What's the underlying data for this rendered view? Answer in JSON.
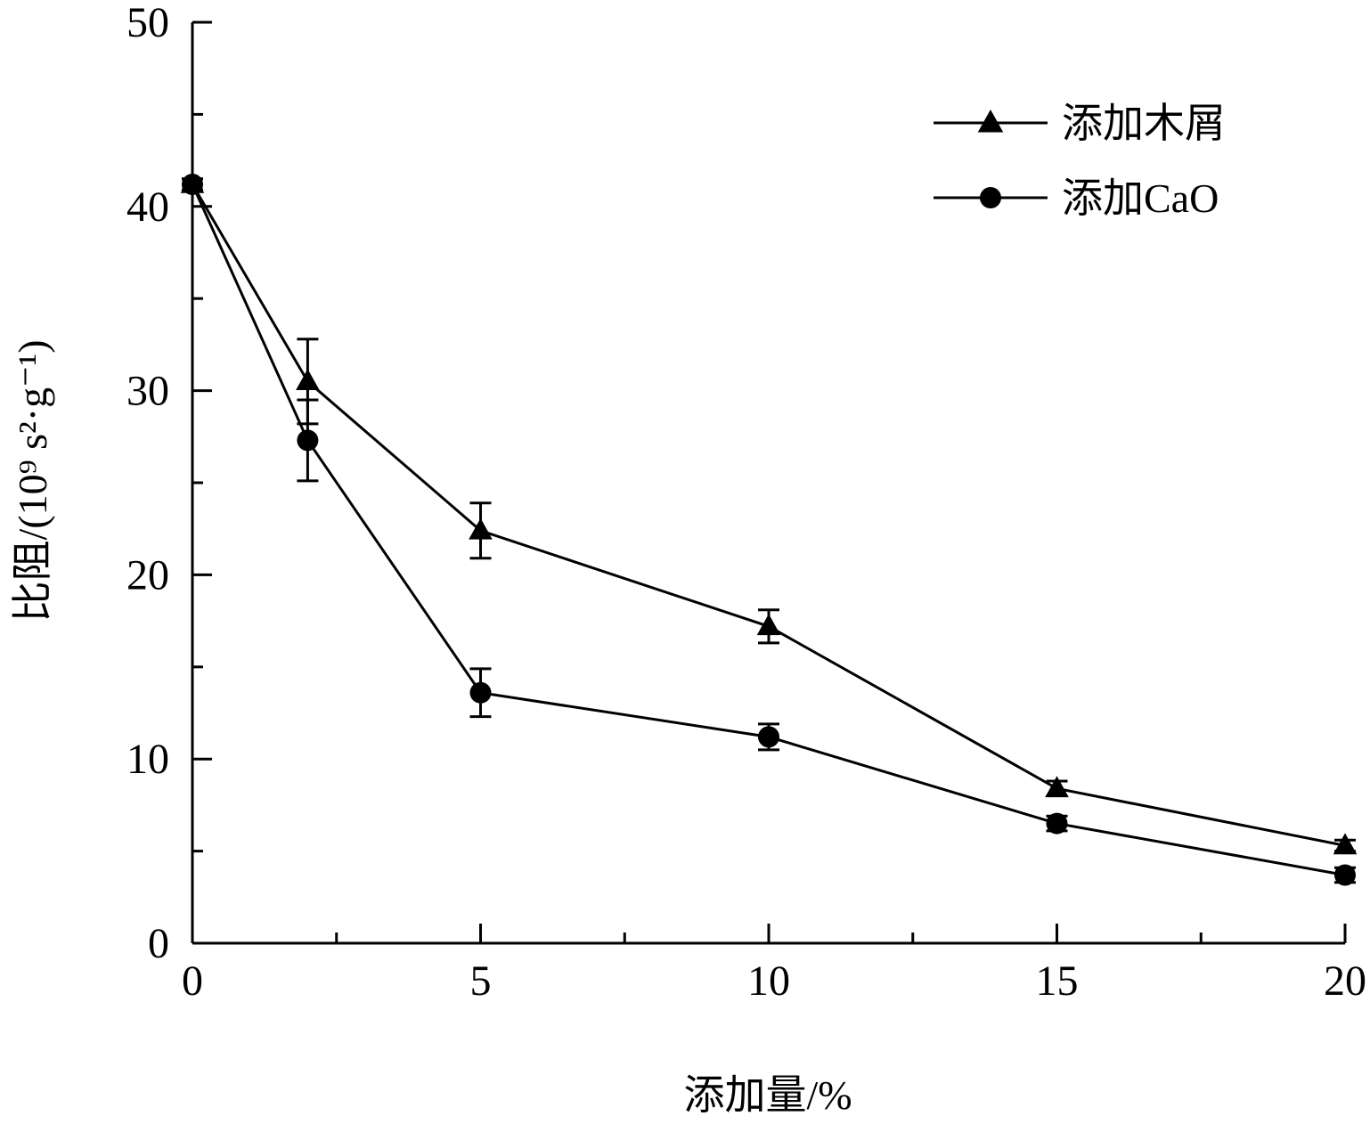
{
  "chart_data": {
    "type": "line",
    "title": "",
    "xlabel": "添加量/%",
    "ylabel": "比阻/(10⁹ s²·g⁻¹)",
    "xlim": [
      0,
      20
    ],
    "ylim": [
      0,
      50
    ],
    "xticks": [
      "0",
      "5",
      "10",
      "15",
      "20"
    ],
    "yticks": [
      "0",
      "10",
      "20",
      "30",
      "40",
      "50"
    ],
    "grid": false,
    "legend_position": "top-right",
    "x": [
      0,
      2,
      5,
      10,
      15,
      20
    ],
    "series": [
      {
        "name": "添加木屑",
        "marker": "triangle",
        "values": [
          41.2,
          30.5,
          22.4,
          17.2,
          8.4,
          5.3
        ],
        "errors": [
          0.3,
          2.3,
          1.5,
          0.9,
          0.4,
          0.3
        ]
      },
      {
        "name": "添加CaO",
        "marker": "circle",
        "values": [
          41.2,
          27.3,
          13.6,
          11.2,
          6.5,
          3.7
        ],
        "errors": [
          0.3,
          2.2,
          1.3,
          0.7,
          0.4,
          0.4
        ]
      }
    ],
    "colors": {
      "line": "#000000",
      "marker": "#000000"
    }
  }
}
